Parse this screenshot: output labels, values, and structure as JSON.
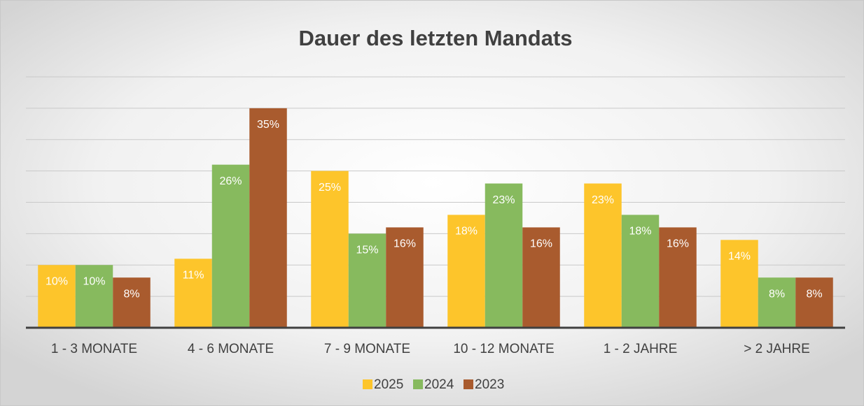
{
  "chart_data": {
    "type": "bar",
    "title": "Dauer des letzten Mandats",
    "categories": [
      "1 - 3 MONATE",
      "4 - 6 MONATE",
      "7 - 9 MONATE",
      "10 - 12 MONATE",
      "1 - 2 JAHRE",
      "> 2 JAHRE"
    ],
    "series": [
      {
        "name": "2025",
        "color": "#fdc52b",
        "values": [
          10,
          11,
          25,
          18,
          23,
          14
        ],
        "value_labels": [
          "10%",
          "11%",
          "25%",
          "18%",
          "23%",
          "14%"
        ]
      },
      {
        "name": "2024",
        "color": "#87ba5e",
        "values": [
          10,
          26,
          15,
          23,
          18,
          8
        ],
        "value_labels": [
          "10%",
          "26%",
          "15%",
          "23%",
          "18%",
          "8%"
        ]
      },
      {
        "name": "2023",
        "color": "#a95b2e",
        "values": [
          8,
          35,
          16,
          16,
          16,
          8
        ],
        "value_labels": [
          "8%",
          "35%",
          "16%",
          "16%",
          "16%",
          "8%"
        ]
      }
    ],
    "ylim": [
      0,
      40
    ],
    "yticks": [
      0,
      5,
      10,
      15,
      20,
      25,
      30,
      35,
      40
    ],
    "grid": true,
    "legend": "bottom"
  }
}
